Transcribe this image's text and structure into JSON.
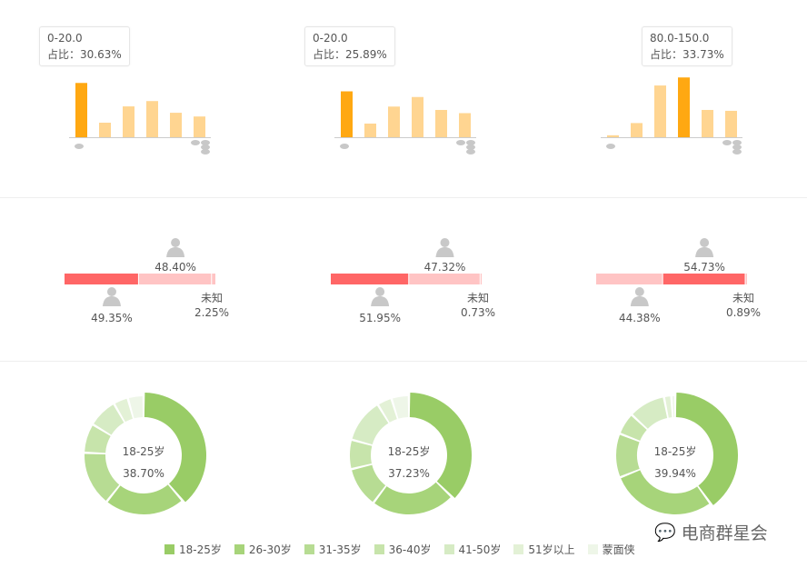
{
  "chart_data": [
    {
      "type": "bar",
      "group": "price",
      "values": [
        30.63,
        8.2,
        17.4,
        20.4,
        13.8,
        11.7
      ],
      "highlight": 0,
      "tooltip": {
        "label": "0-20.0",
        "ratio": "占比：30.63%"
      }
    },
    {
      "type": "bar",
      "group": "price",
      "values": [
        25.89,
        7.7,
        17.3,
        22.7,
        15.4,
        13.6
      ],
      "highlight": 0,
      "tooltip": {
        "label": "0-20.0",
        "ratio": "占比：25.89%"
      }
    },
    {
      "type": "bar",
      "group": "price",
      "values": [
        1.1,
        8.0,
        29.2,
        33.73,
        15.4,
        14.9
      ],
      "highlight": 3,
      "tooltip": {
        "label": "80.0-150.0",
        "ratio": "占比：33.73%"
      }
    },
    {
      "type": "stacked-bar",
      "group": "gender",
      "male": 49.35,
      "female": 48.4,
      "unknown": 2.25,
      "labels": {
        "male": "49.35%",
        "female": "48.40%",
        "unknown_name": "未知",
        "unknown": "2.25%"
      }
    },
    {
      "type": "stacked-bar",
      "group": "gender",
      "male": 51.95,
      "female": 47.32,
      "unknown": 0.73,
      "labels": {
        "male": "51.95%",
        "female": "47.32%",
        "unknown_name": "未知",
        "unknown": "0.73%"
      }
    },
    {
      "type": "stacked-bar",
      "group": "gender",
      "male": 44.38,
      "female": 54.73,
      "unknown": 0.89,
      "labels": {
        "male": "44.38%",
        "female": "54.73%",
        "unknown_name": "未知",
        "unknown": "0.89%"
      }
    },
    {
      "type": "pie",
      "group": "age",
      "values": [
        38.7,
        22,
        15,
        8,
        8,
        4,
        4.3
      ],
      "center": {
        "label": "18-25岁",
        "value": "38.70%"
      }
    },
    {
      "type": "pie",
      "group": "age",
      "values": [
        37.23,
        23,
        11,
        8,
        12,
        4,
        4.77
      ],
      "center": {
        "label": "18-25岁",
        "value": "37.23%"
      }
    },
    {
      "type": "pie",
      "group": "age",
      "values": [
        39.94,
        29,
        12,
        6,
        10,
        2,
        1.06
      ],
      "center": {
        "label": "18-25岁",
        "value": "39.94%"
      }
    }
  ],
  "legend": [
    {
      "name": "18-25岁",
      "color": "#99cc66"
    },
    {
      "name": "26-30岁",
      "color": "#a7d47a"
    },
    {
      "name": "31-35岁",
      "color": "#b7dc93"
    },
    {
      "name": "36-40岁",
      "color": "#c7e4ab"
    },
    {
      "name": "41-50岁",
      "color": "#d6ebc4"
    },
    {
      "name": "51岁以上",
      "color": "#e3f1d6"
    },
    {
      "name": "蒙面侠",
      "color": "#eef6e8"
    }
  ],
  "colors": {
    "bar_highlight": "#ffa812",
    "bar": "#ffd591",
    "gender_strong": "#ff6666",
    "gender_light": "#ffc4c4",
    "icon": "#c8c8c8"
  },
  "watermark": "电商群星会"
}
